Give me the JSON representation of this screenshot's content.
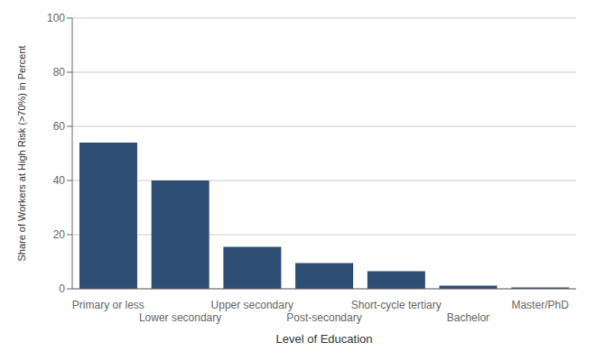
{
  "chart_data": {
    "type": "bar",
    "categories": [
      "Primary or less",
      "Lower secondary",
      "Upper secondary",
      "Post-secondary",
      "Short-cycle tertiary",
      "Bachelor",
      "Master/PhD"
    ],
    "values": [
      54,
      40,
      15.5,
      9.5,
      6.5,
      1.2,
      0.5
    ],
    "color": "#2d4d72",
    "xlabel": "Level of Education",
    "ylabel": "Share of Workers at High Risk (>70%) in Percent",
    "ylim": [
      0,
      100
    ],
    "yticks": [
      0,
      20,
      40,
      60,
      80,
      100
    ],
    "grid": true
  }
}
